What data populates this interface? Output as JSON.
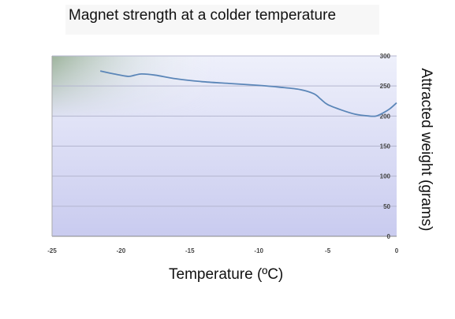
{
  "chart_data": {
    "type": "line",
    "title": "Magnet strength at a colder temperature",
    "xlabel": "Temperature (ºC)",
    "ylabel": "Attracted weight (grams)",
    "xlim": [
      -25,
      0
    ],
    "ylim": [
      0,
      300
    ],
    "x_ticks": [
      "-25",
      "-20",
      "-15",
      "-10",
      "-5",
      "0"
    ],
    "y_ticks": [
      "0",
      "50",
      "100",
      "150",
      "200",
      "250",
      "300"
    ],
    "grid": true,
    "series": [
      {
        "x": [
          -21.5,
          -20.5,
          -19.5,
          -19,
          -18.5,
          -17.5,
          -16,
          -14,
          -12,
          -10,
          -8.5,
          -7,
          -6,
          -5.5,
          -5,
          -4,
          -3,
          -2,
          -1.5,
          -1,
          -0.5,
          0
        ],
        "y": [
          275,
          270,
          266,
          268,
          270,
          268,
          262,
          257,
          254,
          251,
          248,
          244,
          237,
          228,
          219,
          210,
          203,
          200,
          200,
          205,
          212,
          222
        ]
      }
    ],
    "line_color": "#5b86b8"
  }
}
